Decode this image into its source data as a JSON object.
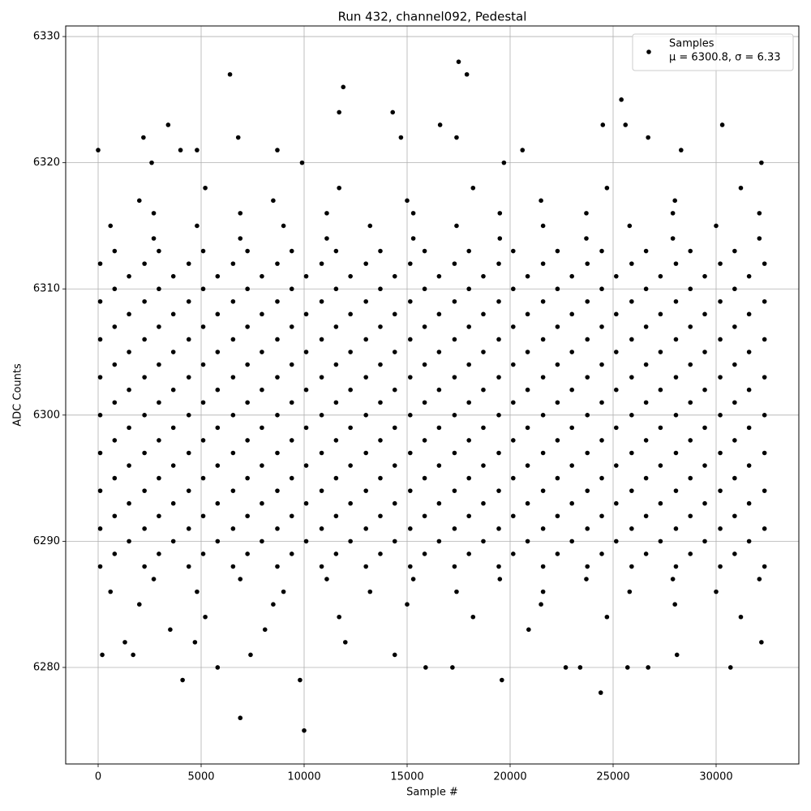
{
  "chart_data": {
    "type": "scatter",
    "title": "Run 432, channel092, Pedestal",
    "xlabel": "Sample #",
    "ylabel": "ADC Counts",
    "xlim": [
      -1575,
      34016
    ],
    "ylim": [
      6272.35,
      6330.84
    ],
    "xticks": [
      0,
      5000,
      10000,
      15000,
      20000,
      25000,
      30000
    ],
    "yticks": [
      6280,
      6290,
      6300,
      6310,
      6320,
      6330
    ],
    "grid": true,
    "legend": "upper right",
    "legend_note": "μ = 6300.8, σ = 6.33",
    "series": [
      {
        "name": "Samples",
        "color": "#000000",
        "x": [
          100,
          2250,
          4400,
          6550,
          8700,
          10850,
          13000,
          15150,
          17300,
          19450,
          21600,
          23750,
          25900,
          28050,
          30200,
          32350,
          800,
          2950,
          5100,
          7250,
          9400,
          11550,
          13700,
          15850,
          18000,
          20150,
          22300,
          24450,
          26600,
          28750,
          30900,
          1500,
          3650,
          5800,
          7950,
          10100,
          12250,
          14400,
          16550,
          18700,
          20850,
          23000,
          25150,
          27300,
          29450,
          31600,
          100,
          2250,
          4400,
          6550,
          8700,
          10850,
          13000,
          15150,
          17300,
          19450,
          21600,
          23750,
          25900,
          28050,
          30200,
          32350,
          800,
          2950,
          5100,
          7250,
          9400,
          11550,
          13700,
          15850,
          18000,
          20150,
          22300,
          24450,
          26600,
          28750,
          30900,
          1500,
          3650,
          5800,
          7950,
          10100,
          12250,
          14400,
          16550,
          18700,
          20850,
          23000,
          25150,
          27300,
          29450,
          31600,
          100,
          2250,
          4400,
          6550,
          8700,
          10850,
          13000,
          15150,
          17300,
          19450,
          21600,
          23750,
          25900,
          28050,
          30200,
          32350,
          800,
          2950,
          5100,
          7250,
          9400,
          11550,
          13700,
          15850,
          18000,
          20150,
          22300,
          24450,
          26600,
          28750,
          30900,
          1500,
          3650,
          5800,
          7950,
          10100,
          12250,
          14400,
          16550,
          18700,
          20850,
          23000,
          25150,
          27300,
          29450,
          31600,
          100,
          2250,
          4400,
          6550,
          8700,
          10850,
          13000,
          15150,
          17300,
          19450,
          21600,
          23750,
          25900,
          28050,
          30200,
          32350,
          800,
          2950,
          5100,
          7250,
          9400,
          11550,
          13700,
          15850,
          18000,
          20150,
          22300,
          24450,
          26600,
          28750,
          30900,
          1500,
          3650,
          5800,
          7950,
          10100,
          12250,
          14400,
          16550,
          18700,
          20850,
          23000,
          25150,
          27300,
          29450,
          31600,
          100,
          2250,
          4400,
          6550,
          8700,
          10850,
          13000,
          15150,
          17300,
          19450,
          21600,
          23750,
          25900,
          28050,
          30200,
          32350,
          800,
          2950,
          5100,
          7250,
          9400,
          11550,
          13700,
          15850,
          18000,
          20150,
          22300,
          24450,
          26600,
          28750,
          30900,
          1500,
          3650,
          5800,
          7950,
          10100,
          12250,
          14400,
          16550,
          18700,
          20850,
          23000,
          25150,
          27300,
          29450,
          31600,
          100,
          2250,
          4400,
          6550,
          8700,
          10850,
          13000,
          15150,
          17300,
          19450,
          21600,
          23750,
          25900,
          28050,
          30200,
          32350,
          800,
          2950,
          5100,
          7250,
          9400,
          11550,
          13700,
          15850,
          18000,
          20150,
          22300,
          24450,
          26600,
          28750,
          30900,
          1500,
          3650,
          5800,
          7950,
          10100,
          12250,
          14400,
          16550,
          18700,
          20850,
          23000,
          25150,
          27300,
          29450,
          31600,
          100,
          2250,
          4400,
          6550,
          8700,
          10850,
          13000,
          15150,
          17300,
          19450,
          21600,
          23750,
          25900,
          28050,
          30200,
          32350,
          800,
          2950,
          5100,
          7250,
          9400,
          11550,
          13700,
          15850,
          18000,
          20150,
          22300,
          24450,
          26600,
          28750,
          30900,
          1500,
          3650,
          5800,
          7950,
          10100,
          12250,
          14400,
          16550,
          18700,
          20850,
          23000,
          25150,
          27300,
          29450,
          31600,
          100,
          2250,
          4400,
          6550,
          8700,
          10850,
          13000,
          15150,
          17300,
          19450,
          21600,
          23750,
          25900,
          28050,
          30200,
          32350,
          800,
          2950,
          5100,
          7250,
          9400,
          11550,
          13700,
          15850,
          18000,
          20150,
          22300,
          24450,
          26600,
          28750,
          30900,
          1500,
          3650,
          5800,
          7950,
          10100,
          12250,
          14400,
          16550,
          18700,
          20850,
          23000,
          25150,
          27300,
          29450,
          31600,
          100,
          2250,
          4400,
          6550,
          8700,
          10850,
          13000,
          15150,
          17300,
          19450,
          21600,
          23750,
          25900,
          28050,
          30200,
          32350,
          800,
          2950,
          5100,
          7250,
          9400,
          11550,
          13700,
          15850,
          18000,
          20150,
          22300,
          24450,
          26600,
          28750,
          30900,
          600,
          4800,
          9000,
          13200,
          17400,
          21600,
          25800,
          30000,
          2700,
          6900,
          11100,
          15300,
          19500,
          23700,
          27900,
          32100,
          2700,
          6900,
          11100,
          15300,
          19500,
          23700,
          27900,
          32100,
          600,
          4800,
          9000,
          13200,
          17400,
          21600,
          25800,
          30000,
          2700,
          6900,
          11100,
          15300,
          19500,
          23700,
          27900,
          32100,
          2000,
          8500,
          15000,
          21500,
          28000,
          5200,
          11700,
          18200,
          24700,
          31200,
          2000,
          8500,
          15000,
          21500,
          28000,
          5200,
          11700,
          18200,
          24700,
          31200,
          0,
          200,
          2200,
          2600,
          3400,
          4100,
          4000,
          4800,
          6400,
          6800,
          6900,
          5800,
          7400,
          8700,
          9800,
          10000,
          9900,
          11700,
          11900,
          14300,
          14400,
          14700,
          15900,
          16600,
          17200,
          17400,
          17500,
          17900,
          19600,
          19700,
          20600,
          22700,
          23400,
          24400,
          24500,
          25400,
          25600,
          25700,
          26700,
          26700,
          28300,
          28100,
          30300,
          30700,
          32200,
          32200,
          1700,
          3500,
          4700,
          12000,
          1300,
          8100,
          20900
        ],
        "values": [
          6288,
          6288,
          6288,
          6288,
          6288,
          6288,
          6288,
          6288,
          6288,
          6288,
          6288,
          6288,
          6288,
          6288,
          6288,
          6288,
          6289,
          6289,
          6289,
          6289,
          6289,
          6289,
          6289,
          6289,
          6289,
          6289,
          6289,
          6289,
          6289,
          6289,
          6289,
          6290,
          6290,
          6290,
          6290,
          6290,
          6290,
          6290,
          6290,
          6290,
          6290,
          6290,
          6290,
          6290,
          6290,
          6290,
          6291,
          6291,
          6291,
          6291,
          6291,
          6291,
          6291,
          6291,
          6291,
          6291,
          6291,
          6291,
          6291,
          6291,
          6291,
          6291,
          6292,
          6292,
          6292,
          6292,
          6292,
          6292,
          6292,
          6292,
          6292,
          6292,
          6292,
          6292,
          6292,
          6292,
          6292,
          6293,
          6293,
          6293,
          6293,
          6293,
          6293,
          6293,
          6293,
          6293,
          6293,
          6293,
          6293,
          6293,
          6293,
          6293,
          6294,
          6294,
          6294,
          6294,
          6294,
          6294,
          6294,
          6294,
          6294,
          6294,
          6294,
          6294,
          6294,
          6294,
          6294,
          6294,
          6295,
          6295,
          6295,
          6295,
          6295,
          6295,
          6295,
          6295,
          6295,
          6295,
          6295,
          6295,
          6295,
          6295,
          6295,
          6296,
          6296,
          6296,
          6296,
          6296,
          6296,
          6296,
          6296,
          6296,
          6296,
          6296,
          6296,
          6296,
          6296,
          6296,
          6297,
          6297,
          6297,
          6297,
          6297,
          6297,
          6297,
          6297,
          6297,
          6297,
          6297,
          6297,
          6297,
          6297,
          6297,
          6297,
          6298,
          6298,
          6298,
          6298,
          6298,
          6298,
          6298,
          6298,
          6298,
          6298,
          6298,
          6298,
          6298,
          6298,
          6298,
          6299,
          6299,
          6299,
          6299,
          6299,
          6299,
          6299,
          6299,
          6299,
          6299,
          6299,
          6299,
          6299,
          6299,
          6299,
          6300,
          6300,
          6300,
          6300,
          6300,
          6300,
          6300,
          6300,
          6300,
          6300,
          6300,
          6300,
          6300,
          6300,
          6300,
          6300,
          6301,
          6301,
          6301,
          6301,
          6301,
          6301,
          6301,
          6301,
          6301,
          6301,
          6301,
          6301,
          6301,
          6301,
          6301,
          6302,
          6302,
          6302,
          6302,
          6302,
          6302,
          6302,
          6302,
          6302,
          6302,
          6302,
          6302,
          6302,
          6302,
          6302,
          6303,
          6303,
          6303,
          6303,
          6303,
          6303,
          6303,
          6303,
          6303,
          6303,
          6303,
          6303,
          6303,
          6303,
          6303,
          6303,
          6304,
          6304,
          6304,
          6304,
          6304,
          6304,
          6304,
          6304,
          6304,
          6304,
          6304,
          6304,
          6304,
          6304,
          6304,
          6305,
          6305,
          6305,
          6305,
          6305,
          6305,
          6305,
          6305,
          6305,
          6305,
          6305,
          6305,
          6305,
          6305,
          6305,
          6306,
          6306,
          6306,
          6306,
          6306,
          6306,
          6306,
          6306,
          6306,
          6306,
          6306,
          6306,
          6306,
          6306,
          6306,
          6306,
          6307,
          6307,
          6307,
          6307,
          6307,
          6307,
          6307,
          6307,
          6307,
          6307,
          6307,
          6307,
          6307,
          6307,
          6307,
          6308,
          6308,
          6308,
          6308,
          6308,
          6308,
          6308,
          6308,
          6308,
          6308,
          6308,
          6308,
          6308,
          6308,
          6308,
          6309,
          6309,
          6309,
          6309,
          6309,
          6309,
          6309,
          6309,
          6309,
          6309,
          6309,
          6309,
          6309,
          6309,
          6309,
          6309,
          6310,
          6310,
          6310,
          6310,
          6310,
          6310,
          6310,
          6310,
          6310,
          6310,
          6310,
          6310,
          6310,
          6310,
          6310,
          6311,
          6311,
          6311,
          6311,
          6311,
          6311,
          6311,
          6311,
          6311,
          6311,
          6311,
          6311,
          6311,
          6311,
          6311,
          6312,
          6312,
          6312,
          6312,
          6312,
          6312,
          6312,
          6312,
          6312,
          6312,
          6312,
          6312,
          6312,
          6312,
          6312,
          6312,
          6313,
          6313,
          6313,
          6313,
          6313,
          6313,
          6313,
          6313,
          6313,
          6313,
          6313,
          6313,
          6313,
          6313,
          6313,
          6286,
          6286,
          6286,
          6286,
          6286,
          6286,
          6286,
          6286,
          6287,
          6287,
          6287,
          6287,
          6287,
          6287,
          6287,
          6287,
          6314,
          6314,
          6314,
          6314,
          6314,
          6314,
          6314,
          6314,
          6315,
          6315,
          6315,
          6315,
          6315,
          6315,
          6315,
          6315,
          6316,
          6316,
          6316,
          6316,
          6316,
          6316,
          6316,
          6316,
          6285,
          6285,
          6285,
          6285,
          6285,
          6284,
          6284,
          6284,
          6284,
          6284,
          6317,
          6317,
          6317,
          6317,
          6317,
          6318,
          6318,
          6318,
          6318,
          6318,
          6321,
          6281,
          6322,
          6320,
          6323,
          6279,
          6321,
          6321,
          6327,
          6322,
          6276,
          6280,
          6281,
          6321,
          6279,
          6275,
          6320,
          6324,
          6326,
          6324,
          6281,
          6322,
          6280,
          6323,
          6280,
          6322,
          6328,
          6327,
          6279,
          6320,
          6321,
          6280,
          6280,
          6278,
          6323,
          6325,
          6323,
          6280,
          6280,
          6322,
          6321,
          6281,
          6323,
          6280,
          6320,
          6282,
          6281,
          6283,
          6282,
          6282,
          6282,
          6283,
          6283
        ]
      }
    ]
  }
}
